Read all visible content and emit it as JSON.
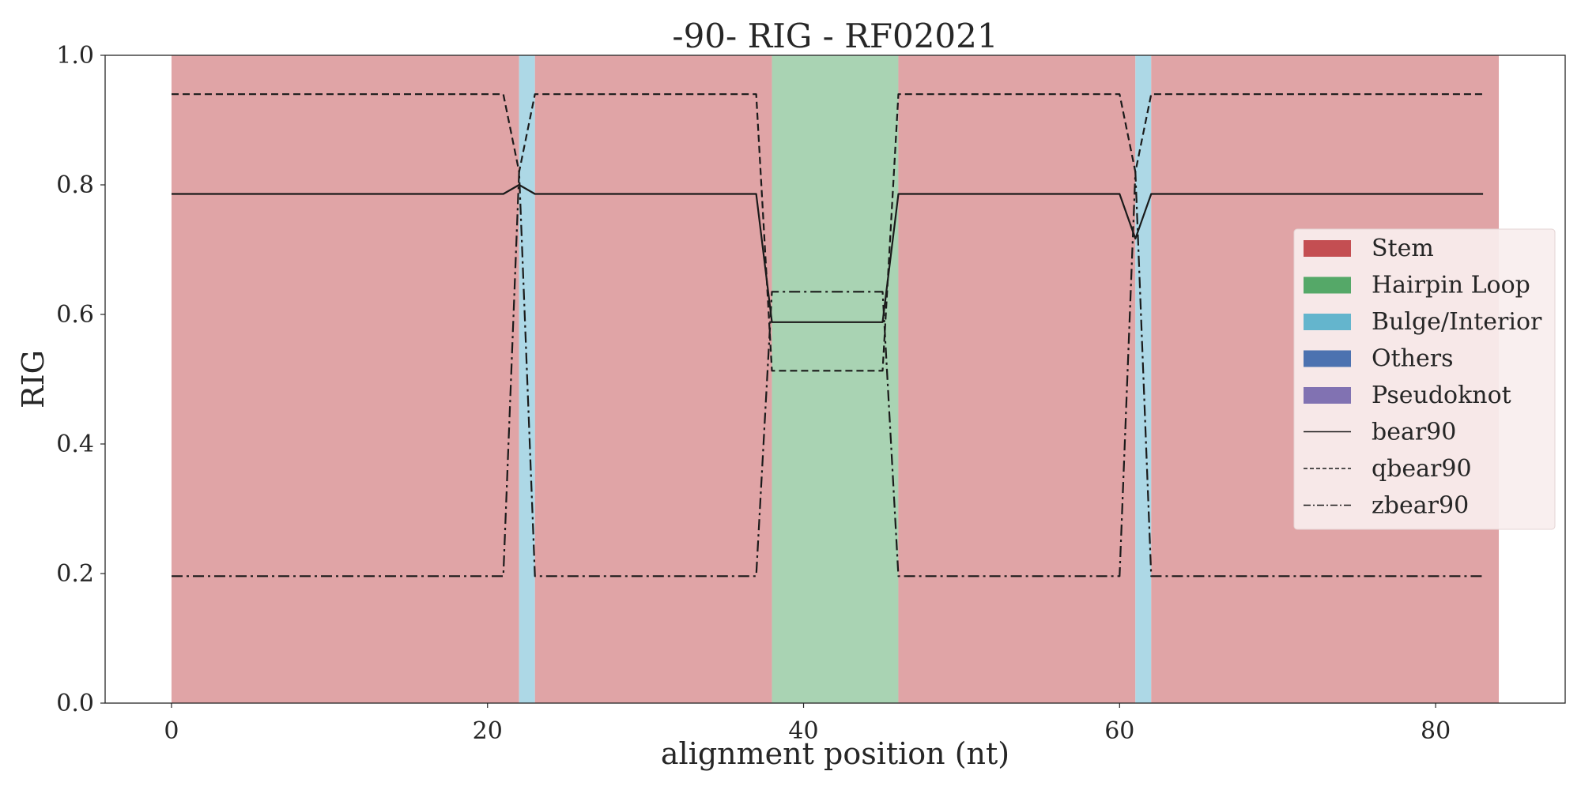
{
  "chart_data": {
    "type": "line",
    "title": "-90- RIG - RF02021",
    "xlabel": "alignment position (nt)",
    "ylabel": "RIG",
    "xlim": [
      -4.2,
      88.2
    ],
    "ylim": [
      0,
      1
    ],
    "xticks": [
      0,
      20,
      40,
      60,
      80
    ],
    "yticks": [
      0.0,
      0.2,
      0.4,
      0.6,
      0.8,
      1.0
    ],
    "grid": false,
    "legend_position": "center-right",
    "regions": [
      {
        "type": "Stem",
        "start": 0,
        "end": 22
      },
      {
        "type": "Bulge/Interior",
        "start": 22,
        "end": 23
      },
      {
        "type": "Stem",
        "start": 23,
        "end": 38
      },
      {
        "type": "Hairpin Loop",
        "start": 38,
        "end": 46
      },
      {
        "type": "Stem",
        "start": 46,
        "end": 61
      },
      {
        "type": "Bulge/Interior",
        "start": 61,
        "end": 62
      },
      {
        "type": "Stem",
        "start": 62,
        "end": 84
      }
    ],
    "region_legend": [
      {
        "name": "Stem",
        "color": "#c44e52",
        "fill": "#e0a4a6"
      },
      {
        "name": "Hairpin Loop",
        "color": "#55a868",
        "fill": "#a9d3b3"
      },
      {
        "name": "Bulge/Interior",
        "color": "#64b5cd",
        "fill": "#add8e6"
      },
      {
        "name": "Others",
        "color": "#4c72b0",
        "fill": "#4c72b0"
      },
      {
        "name": "Pseudoknot",
        "color": "#8172b2",
        "fill": "#8172b2"
      }
    ],
    "series": [
      {
        "name": "bear90",
        "style": "solid",
        "x": [
          0,
          21,
          22,
          23,
          37,
          38,
          45,
          46,
          60,
          61,
          62,
          83
        ],
        "y": [
          0.786,
          0.786,
          0.8,
          0.786,
          0.786,
          0.588,
          0.588,
          0.786,
          0.786,
          0.717,
          0.786,
          0.786
        ]
      },
      {
        "name": "qbear90",
        "style": "dashed",
        "x": [
          0,
          21,
          22,
          23,
          37,
          38,
          45,
          46,
          60,
          61,
          62,
          83
        ],
        "y": [
          0.94,
          0.94,
          0.82,
          0.94,
          0.94,
          0.513,
          0.513,
          0.94,
          0.94,
          0.82,
          0.94,
          0.94
        ]
      },
      {
        "name": "zbear90",
        "style": "dashdot",
        "x": [
          0,
          21,
          22,
          23,
          37,
          38,
          45,
          46,
          60,
          61,
          62,
          83
        ],
        "y": [
          0.196,
          0.196,
          0.82,
          0.196,
          0.196,
          0.635,
          0.635,
          0.196,
          0.196,
          0.82,
          0.196,
          0.196
        ]
      }
    ]
  }
}
